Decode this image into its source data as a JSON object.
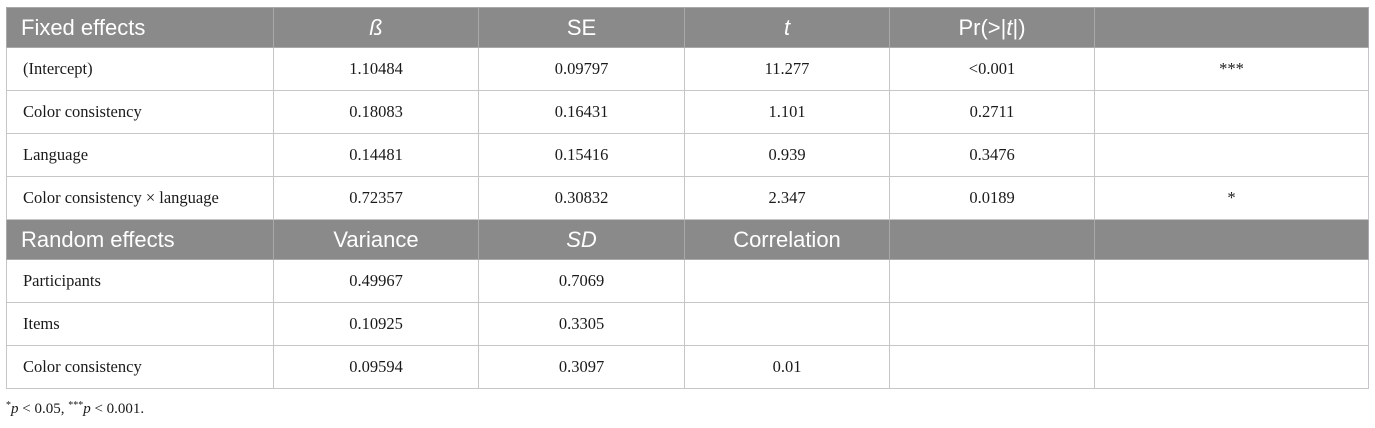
{
  "fixed_header": {
    "label": "Fixed effects",
    "beta": "ß",
    "se": "SE",
    "t": "t",
    "p_prefix": "Pr(>|",
    "p_italic": "t",
    "p_suffix": "|)",
    "last": ""
  },
  "fixed_rows": [
    {
      "label": "(Intercept)",
      "beta": "1.10484",
      "se": "0.09797",
      "t": "11.277",
      "p": "<0.001",
      "sig": "***"
    },
    {
      "label": "Color consistency",
      "beta": "0.18083",
      "se": "0.16431",
      "t": "1.101",
      "p": "0.2711",
      "sig": ""
    },
    {
      "label": "Language",
      "beta": "0.14481",
      "se": "0.15416",
      "t": "0.939",
      "p": "0.3476",
      "sig": ""
    },
    {
      "label": "Color consistency × language",
      "beta": "0.72357",
      "se": "0.30832",
      "t": "2.347",
      "p": "0.0189",
      "sig": "*"
    }
  ],
  "random_header": {
    "label": "Random effects",
    "variance": "Variance",
    "sd": "SD",
    "correlation": "Correlation",
    "c4": "",
    "c5": ""
  },
  "random_rows": [
    {
      "label": "Participants",
      "variance": "0.49967",
      "sd": "0.7069",
      "correlation": "",
      "c4": "",
      "c5": ""
    },
    {
      "label": "Items",
      "variance": "0.10925",
      "sd": "0.3305",
      "correlation": "",
      "c4": "",
      "c5": ""
    },
    {
      "label": "Color consistency",
      "variance": "0.09594",
      "sd": "0.3097",
      "correlation": "0.01",
      "c4": "",
      "c5": ""
    }
  ],
  "footnote": {
    "sup1": "*",
    "p1": "p",
    "rest1": " < 0.05, ",
    "sup2": "***",
    "p2": "p",
    "rest2": " < 0.001."
  }
}
